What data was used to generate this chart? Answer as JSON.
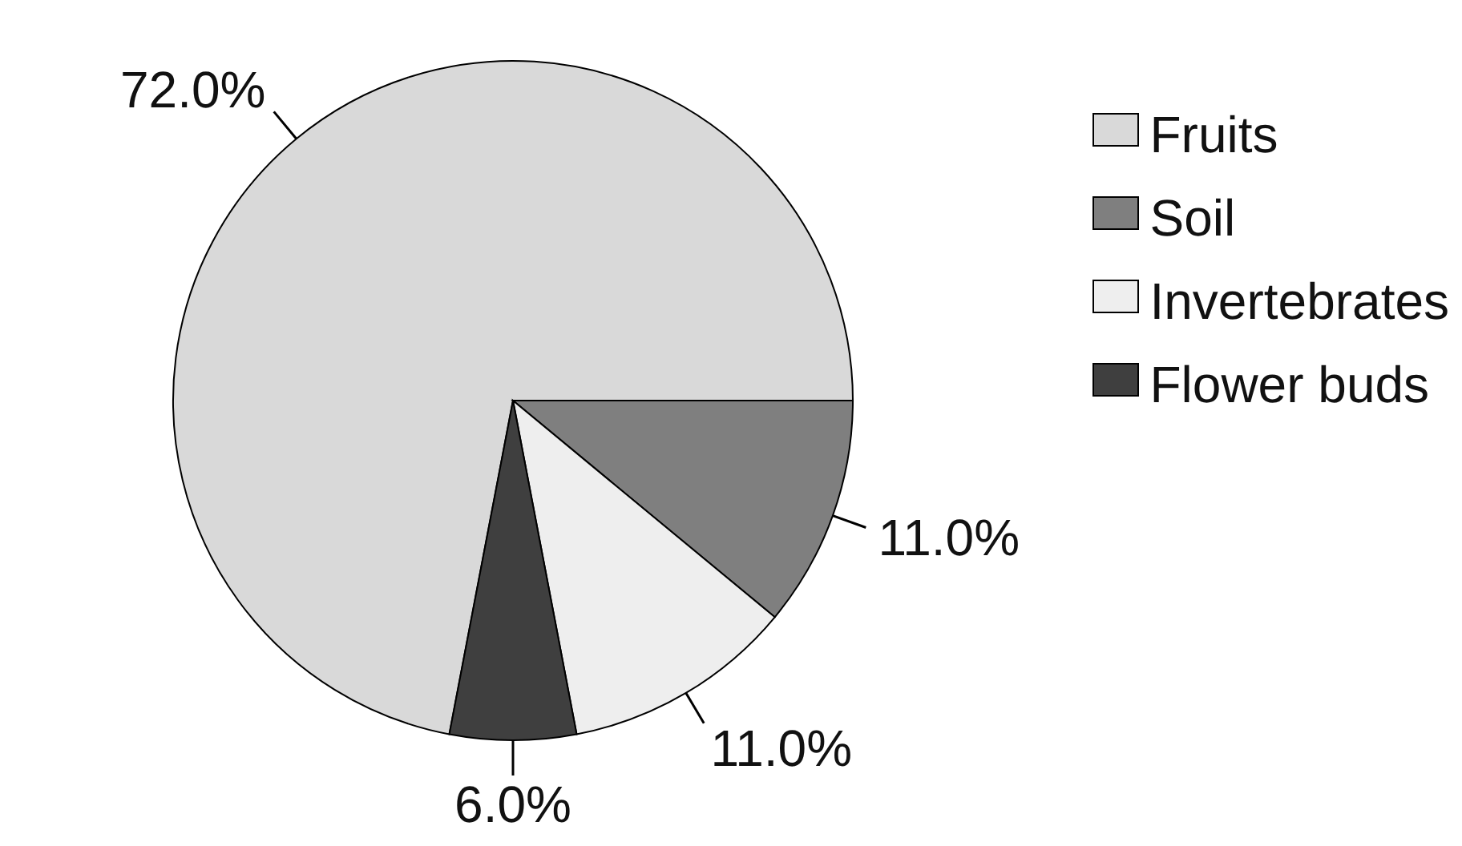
{
  "chart_data": {
    "type": "pie",
    "categories": [
      "Fruits",
      "Soil",
      "Invertebrates",
      "Flower buds"
    ],
    "values": [
      72,
      11,
      11,
      6
    ],
    "colors": [
      "#d9d9d9",
      "#7f7f7f",
      "#eeeeee",
      "#3f3f3f"
    ],
    "value_labels": [
      "72.0%",
      "11.0%",
      "11.0%",
      "6.0%"
    ],
    "legend": "top right"
  }
}
